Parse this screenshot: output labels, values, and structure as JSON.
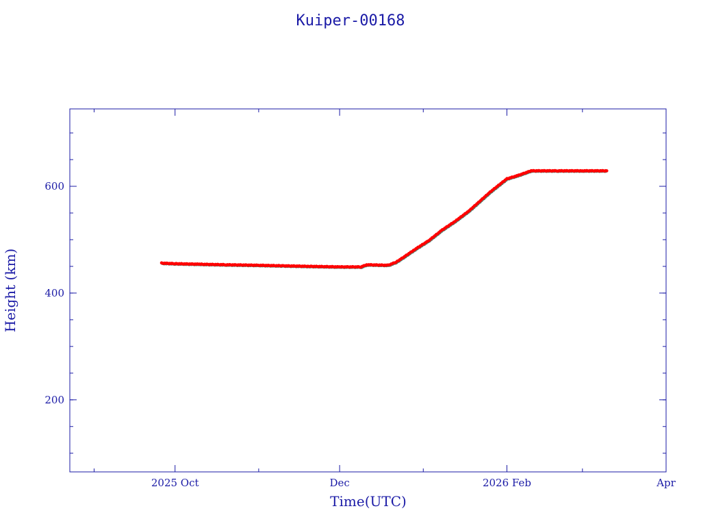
{
  "chart_data": {
    "type": "scatter",
    "title": "Kuiper-00168",
    "xlabel": "Time(UTC)",
    "ylabel": "Height (km)",
    "x_type": "date",
    "xlim": [
      "2025-08-23",
      "2026-04-01"
    ],
    "ylim": [
      65,
      745
    ],
    "x_ticks": [
      {
        "date": "2025-10-01",
        "label": "2025 Oct"
      },
      {
        "date": "2025-12-01",
        "label": "Dec"
      },
      {
        "date": "2026-02-01",
        "label": "2026 Feb"
      },
      {
        "date": "2026-04-01",
        "label": "Apr"
      }
    ],
    "x_minor_ticks": [
      "2025-09-01",
      "2025-11-01",
      "2026-01-01",
      "2026-03-01"
    ],
    "y_ticks": [
      200,
      400,
      600
    ],
    "y_minor_step": 50,
    "grid": false,
    "colors": {
      "frame": "#1a1aa6",
      "points": "#ff0000",
      "shadow": "#3d8a7a"
    },
    "series": [
      {
        "x": [
          "2025-09-26",
          "2025-10-01",
          "2025-10-10",
          "2025-10-20",
          "2025-11-01",
          "2025-11-10",
          "2025-11-20",
          "2025-12-01",
          "2025-12-09",
          "2025-12-11",
          "2025-12-19",
          "2025-12-22",
          "2025-12-25",
          "2025-12-29",
          "2026-01-03",
          "2026-01-08",
          "2026-01-13",
          "2026-01-18",
          "2026-01-22",
          "2026-01-26",
          "2026-02-01",
          "2026-02-05",
          "2026-02-10",
          "2026-02-20",
          "2026-03-01",
          "2026-03-10"
        ],
        "y": [
          456,
          455,
          454,
          453,
          452,
          451,
          450,
          449,
          449,
          453,
          452,
          458,
          468,
          482,
          498,
          518,
          535,
          554,
          572,
          590,
          614,
          620,
          629,
          629,
          629,
          629
        ]
      }
    ]
  }
}
